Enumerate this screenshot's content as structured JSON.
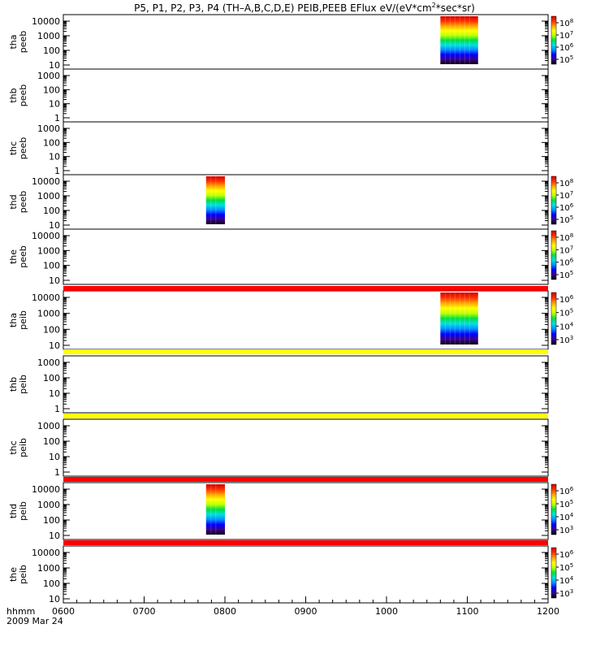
{
  "title_parts": {
    "pre": "P5, P1, P2, P3, P4 (TH–A,B,C,D,E) PEIB,PEEB EFlux eV/(eV*cm",
    "sup": "2",
    "post": "*sec*sr)"
  },
  "footer": {
    "axis_label": "hhmm",
    "date": "2009 Mar 24"
  },
  "colors": {
    "spectrum_stops": [
      "#000000",
      "#3c0090",
      "#0000ff",
      "#0090ff",
      "#00e0e0",
      "#00e040",
      "#c0ff00",
      "#ffff00",
      "#ffa000",
      "#ff3000",
      "#d00000"
    ],
    "bar_red": "#ff0000",
    "bar_yellow": "#ffff00"
  },
  "chart_data": {
    "type": "heatmap",
    "x_axis": {
      "ticks": [
        "0600",
        "0700",
        "0800",
        "0900",
        "1000",
        "1100",
        "1200"
      ],
      "range": [
        "0600",
        "1200"
      ]
    },
    "panels": [
      {
        "id": "tha-peeb",
        "label": [
          "tha",
          "peeb"
        ],
        "y_ticks": [
          "10000",
          "1000",
          "100",
          "10"
        ],
        "y_scale": "log",
        "colorbar": [
          "10^8",
          "10^7",
          "10^6",
          "10^5"
        ],
        "data_interval": [
          "1040",
          "1108"
        ]
      },
      {
        "id": "thb-peeb",
        "label": [
          "thb",
          "peeb"
        ],
        "y_ticks": [
          "1000",
          "100",
          "10",
          "1"
        ],
        "y_scale": "log",
        "colorbar": null,
        "data_interval": null
      },
      {
        "id": "thc-peeb",
        "label": [
          "thc",
          "peeb"
        ],
        "y_ticks": [
          "1000",
          "100",
          "10",
          "1"
        ],
        "y_scale": "log",
        "colorbar": null,
        "data_interval": null
      },
      {
        "id": "thd-peeb",
        "label": [
          "thd",
          "peeb"
        ],
        "y_ticks": [
          "10000",
          "1000",
          "100",
          "10"
        ],
        "y_scale": "log",
        "colorbar": [
          "10^8",
          "10^7",
          "10^6",
          "10^5"
        ],
        "data_interval": [
          "0746",
          "0800"
        ]
      },
      {
        "id": "the-peeb",
        "label": [
          "the",
          "peeb"
        ],
        "y_ticks": [
          "10000",
          "1000",
          "100",
          "10"
        ],
        "y_scale": "log",
        "colorbar": [
          "10^8",
          "10^7",
          "10^6",
          "10^5"
        ],
        "data_interval": null
      },
      {
        "id": "tha-peib",
        "label": [
          "tha",
          "peib"
        ],
        "y_ticks": [
          "10000",
          "1000",
          "100",
          "10"
        ],
        "y_scale": "log",
        "colorbar": [
          "10^6",
          "10^5",
          "10^4",
          "10^3"
        ],
        "data_interval": [
          "1040",
          "1108"
        ]
      },
      {
        "id": "thb-peib",
        "label": [
          "thb",
          "peib"
        ],
        "y_ticks": [
          "1000",
          "100",
          "10",
          "1"
        ],
        "y_scale": "log",
        "colorbar": null,
        "data_interval": null
      },
      {
        "id": "thc-peib",
        "label": [
          "thc",
          "peib"
        ],
        "y_ticks": [
          "1000",
          "100",
          "10",
          "1"
        ],
        "y_scale": "log",
        "colorbar": null,
        "data_interval": null
      },
      {
        "id": "thd-peib",
        "label": [
          "thd",
          "peib"
        ],
        "y_ticks": [
          "10000",
          "1000",
          "100",
          "10"
        ],
        "y_scale": "log",
        "colorbar": [
          "10^6",
          "10^5",
          "10^4",
          "10^3"
        ],
        "data_interval": [
          "0746",
          "0800"
        ]
      },
      {
        "id": "the-peib",
        "label": [
          "the",
          "peib"
        ],
        "y_ticks": [
          "10000",
          "1000",
          "100",
          "10"
        ],
        "y_scale": "log",
        "colorbar": [
          "10^6",
          "10^5",
          "10^4",
          "10^3"
        ],
        "data_interval": null
      }
    ],
    "status_bars": [
      {
        "after_panel": "the-peeb",
        "color": "red"
      },
      {
        "after_panel": "tha-peib",
        "color": "yellow"
      },
      {
        "after_panel": "thb-peib",
        "color": "yellow"
      },
      {
        "after_panel": "thc-peib",
        "color": "red"
      },
      {
        "after_panel": "thd-peib",
        "color": "red"
      }
    ]
  }
}
